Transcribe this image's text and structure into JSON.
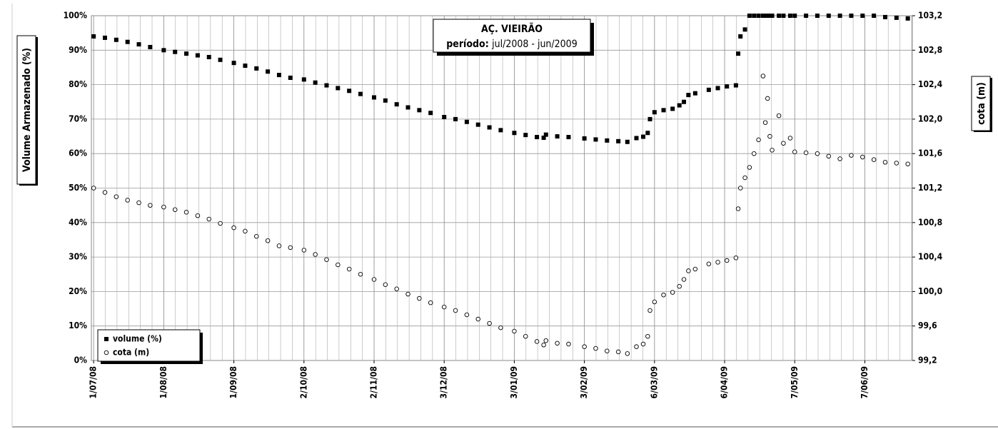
{
  "chart_data": {
    "type": "scatter",
    "title": "AÇ. VIEIRÃO",
    "subtitle_label": "período:",
    "subtitle": "jul/2008 - jun/2009",
    "y_label": "Volume Armazenado (%)",
    "y2_label": "cota (m)",
    "x": [
      "1/07/08",
      "6/07/08",
      "11/07/08",
      "16/07/08",
      "21/07/08",
      "26/07/08",
      "1/08/08",
      "6/08/08",
      "11/08/08",
      "16/08/08",
      "21/08/08",
      "26/08/08",
      "1/09/08",
      "6/09/08",
      "11/09/08",
      "16/09/08",
      "21/09/08",
      "26/09/08",
      "2/10/08",
      "7/10/08",
      "12/10/08",
      "17/10/08",
      "22/10/08",
      "27/10/08",
      "2/11/08",
      "7/11/08",
      "12/11/08",
      "17/11/08",
      "22/11/08",
      "27/11/08",
      "3/12/08",
      "8/12/08",
      "13/12/08",
      "18/12/08",
      "23/12/08",
      "28/12/08",
      "3/01/09",
      "8/01/09",
      "13/01/09",
      "16/01/09",
      "17/01/09",
      "22/01/09",
      "27/01/09",
      "3/02/09",
      "8/02/09",
      "13/02/09",
      "18/02/09",
      "22/02/09",
      "26/02/09",
      "1/03/09",
      "3/03/09",
      "4/03/09",
      "6/03/09",
      "10/03/09",
      "14/03/09",
      "17/03/09",
      "19/03/09",
      "21/03/09",
      "24/03/09",
      "30/03/09",
      "3/04/09",
      "7/04/09",
      "11/04/09",
      "12/04/09",
      "13/04/09",
      "15/04/09",
      "17/04/09",
      "19/04/09",
      "21/04/09",
      "23/04/09",
      "24/04/09",
      "25/04/09",
      "26/04/09",
      "27/04/09",
      "30/04/09",
      "2/05/09",
      "5/05/09",
      "7/05/09",
      "12/05/09",
      "17/05/09",
      "22/05/09",
      "27/05/09",
      "1/06/09",
      "6/06/09",
      "11/06/09",
      "16/06/09",
      "21/06/09",
      "26/06/09"
    ],
    "series": [
      {
        "name": "volume (%)",
        "color": "#000000",
        "marker": "square",
        "values": [
          94,
          93.6,
          93,
          92.4,
          91.7,
          90.9,
          90,
          89.5,
          89,
          88.5,
          88,
          87.2,
          86.3,
          85.5,
          84.7,
          83.8,
          82.8,
          82,
          81.5,
          80.6,
          79.8,
          79,
          78.2,
          77.3,
          76.3,
          75.4,
          74.3,
          73.4,
          72.6,
          71.8,
          70.6,
          70,
          69.2,
          68.4,
          67.6,
          66.8,
          66,
          65.4,
          64.8,
          64.6,
          65.5,
          65,
          64.8,
          64.4,
          64.1,
          63.8,
          63.6,
          63.4,
          64.5,
          64.9,
          66,
          70,
          72,
          72.6,
          73,
          74,
          75,
          77,
          77.5,
          78.5,
          79,
          79.5,
          79.8,
          89,
          94,
          96,
          100,
          100,
          100,
          100,
          100,
          100,
          100,
          100,
          100,
          100,
          100,
          100,
          100,
          100,
          100,
          100,
          100,
          100,
          100,
          99.6,
          99.4,
          99.2
        ]
      },
      {
        "name": "cota (m)",
        "color": "#000000",
        "marker": "circle",
        "axis": "y2",
        "values": [
          101.2,
          101.15,
          101.1,
          101.06,
          101.03,
          101.0,
          100.98,
          100.95,
          100.92,
          100.88,
          100.84,
          100.79,
          100.74,
          100.7,
          100.64,
          100.59,
          100.53,
          100.51,
          100.48,
          100.43,
          100.37,
          100.31,
          100.26,
          100.2,
          100.14,
          100.08,
          100.03,
          99.97,
          99.92,
          99.87,
          99.82,
          99.78,
          99.73,
          99.68,
          99.63,
          99.58,
          99.54,
          99.48,
          99.42,
          99.38,
          99.43,
          99.4,
          99.39,
          99.36,
          99.34,
          99.31,
          99.3,
          99.28,
          99.36,
          99.39,
          99.48,
          99.78,
          99.88,
          99.96,
          99.99,
          100.06,
          100.14,
          100.24,
          100.26,
          100.32,
          100.34,
          100.36,
          100.39,
          100.96,
          101.2,
          101.32,
          101.44,
          101.6,
          101.76,
          102.5,
          101.96,
          102.24,
          101.8,
          101.64,
          102.04,
          101.72,
          101.78,
          101.62,
          101.61,
          101.6,
          101.57,
          101.54,
          101.58,
          101.56,
          101.53,
          101.5,
          101.49,
          101.48
        ]
      }
    ],
    "xlim": [
      "30/06/08",
      "28/06/09"
    ],
    "xticks": [
      "1/07/08",
      "1/08/08",
      "1/09/08",
      "2/10/08",
      "2/11/08",
      "3/12/08",
      "3/01/09",
      "3/02/09",
      "6/03/09",
      "6/04/09",
      "7/05/09",
      "7/06/09"
    ],
    "ylim": [
      0,
      100
    ],
    "yticks": [
      {
        "value": 0,
        "label": "0%"
      },
      {
        "value": 10,
        "label": "10%"
      },
      {
        "value": 20,
        "label": "20%"
      },
      {
        "value": 30,
        "label": "30%"
      },
      {
        "value": 40,
        "label": "40%"
      },
      {
        "value": 50,
        "label": "50%"
      },
      {
        "value": 60,
        "label": "60%"
      },
      {
        "value": 70,
        "label": "70%"
      },
      {
        "value": 80,
        "label": "80%"
      },
      {
        "value": 90,
        "label": "90%"
      },
      {
        "value": 100,
        "label": "100%"
      }
    ],
    "y2lim": [
      99.2,
      103.2
    ],
    "y2ticks": [
      {
        "value": 99.2,
        "label": "99,2"
      },
      {
        "value": 99.6,
        "label": "99,6"
      },
      {
        "value": 100,
        "label": "100,0"
      },
      {
        "value": 100.4,
        "label": "100,4"
      },
      {
        "value": 100.8,
        "label": "100,8"
      },
      {
        "value": 101.2,
        "label": "101,2"
      },
      {
        "value": 101.6,
        "label": "101,6"
      },
      {
        "value": 102,
        "label": "102,0"
      },
      {
        "value": 102.4,
        "label": "102,4"
      },
      {
        "value": 102.8,
        "label": "102,8"
      },
      {
        "value": 103.2,
        "label": "103,2"
      }
    ],
    "grid": true,
    "legend": "lower left"
  }
}
